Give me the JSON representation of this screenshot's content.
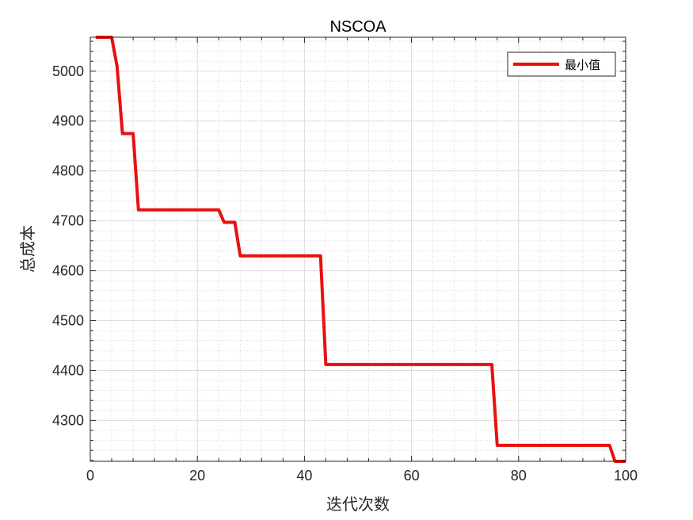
{
  "chart_data": {
    "type": "line",
    "title": "NSCOA",
    "xlabel": "迭代次数",
    "ylabel": "总成本",
    "xlim": [
      0,
      100
    ],
    "ylim": [
      4218,
      5068
    ],
    "xticks": [
      0,
      20,
      40,
      60,
      80,
      100
    ],
    "yticks": [
      4300,
      4400,
      4500,
      4600,
      4700,
      4800,
      4900,
      5000
    ],
    "grid": true,
    "minor_grid": true,
    "legend_position": "top-right",
    "series": [
      {
        "name": "最小值",
        "color": "#e8110f",
        "x": [
          1,
          4,
          5,
          6,
          8,
          9,
          24,
          25,
          27,
          28,
          43,
          44,
          75,
          76,
          97,
          98,
          100
        ],
        "y": [
          5068,
          5068,
          5010,
          4875,
          4875,
          4722,
          4722,
          4697,
          4697,
          4630,
          4630,
          4412,
          4412,
          4250,
          4250,
          4218,
          4218
        ]
      }
    ]
  }
}
